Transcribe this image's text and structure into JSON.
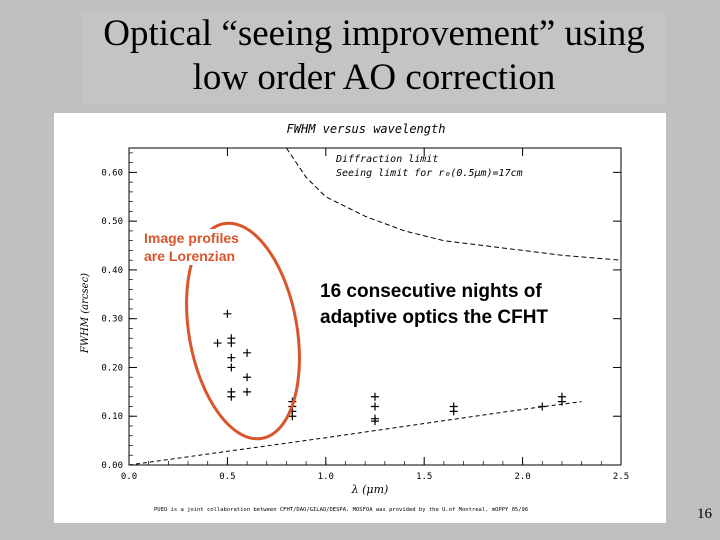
{
  "slide": {
    "title_line1": "Optical “seeing improvement” using",
    "title_line2": "low order AO correction",
    "page_number": "16"
  },
  "annotations": {
    "profiles_line1": "Image profiles",
    "profiles_line2": "are Lorenzian",
    "nights_line1": "16 consecutive nights of",
    "nights_line2": "adaptive optics the CFHT"
  },
  "colors": {
    "accent": "#d9552b",
    "background": "#c0c0c0",
    "plot_bg": "#ffffff"
  },
  "chart_data": {
    "type": "scatter",
    "title": "FWHM versus wavelength",
    "xlabel": "λ (μm)",
    "ylabel": "FWHM (arcsec)",
    "xlim": [
      0.0,
      2.5
    ],
    "ylim": [
      0.0,
      0.65
    ],
    "x_ticks": [
      "0.0",
      "0.5",
      "1.0",
      "1.5",
      "2.0",
      "2.5"
    ],
    "y_ticks": [
      "0.00",
      "0.10",
      "0.20",
      "0.30",
      "0.40",
      "0.50",
      "0.60"
    ],
    "x_tick_values": [
      0.0,
      0.5,
      1.0,
      1.5,
      2.0,
      2.5
    ],
    "y_tick_values": [
      0.0,
      0.1,
      0.2,
      0.3,
      0.4,
      0.5,
      0.6
    ],
    "legend": [
      "Diffraction limit",
      "Seeing limit for r₀(0.5μm)=17cm"
    ],
    "footer": "PUEO is a joint collaboration between CFHT/DAO/GILAO/DESPA. MOSFOA was provided by the U.of Montreal. mOPPY 05/96",
    "diffraction_limit": {
      "x": [
        0.0,
        0.5,
        1.0,
        1.5,
        2.0,
        2.3
      ],
      "y": [
        0.0,
        0.028,
        0.056,
        0.085,
        0.114,
        0.13
      ]
    },
    "seeing_limit": {
      "x": [
        0.8,
        0.9,
        1.0,
        1.2,
        1.4,
        1.6,
        1.8,
        2.0,
        2.2,
        2.5
      ],
      "y": [
        0.65,
        0.59,
        0.55,
        0.51,
        0.48,
        0.46,
        0.45,
        0.44,
        0.43,
        0.42
      ]
    },
    "points": [
      {
        "x": 0.45,
        "y": 0.25
      },
      {
        "x": 0.52,
        "y": 0.26
      },
      {
        "x": 0.52,
        "y": 0.25
      },
      {
        "x": 0.52,
        "y": 0.22
      },
      {
        "x": 0.52,
        "y": 0.2
      },
      {
        "x": 0.52,
        "y": 0.15
      },
      {
        "x": 0.52,
        "y": 0.14
      },
      {
        "x": 0.5,
        "y": 0.31
      },
      {
        "x": 0.6,
        "y": 0.23
      },
      {
        "x": 0.6,
        "y": 0.15
      },
      {
        "x": 0.6,
        "y": 0.18
      },
      {
        "x": 0.83,
        "y": 0.13
      },
      {
        "x": 0.83,
        "y": 0.12
      },
      {
        "x": 0.83,
        "y": 0.11
      },
      {
        "x": 0.83,
        "y": 0.1
      },
      {
        "x": 1.25,
        "y": 0.14
      },
      {
        "x": 1.25,
        "y": 0.12
      },
      {
        "x": 1.25,
        "y": 0.095
      },
      {
        "x": 1.25,
        "y": 0.09
      },
      {
        "x": 1.65,
        "y": 0.12
      },
      {
        "x": 1.65,
        "y": 0.11
      },
      {
        "x": 2.1,
        "y": 0.12
      },
      {
        "x": 2.2,
        "y": 0.14
      },
      {
        "x": 2.2,
        "y": 0.13
      }
    ]
  }
}
